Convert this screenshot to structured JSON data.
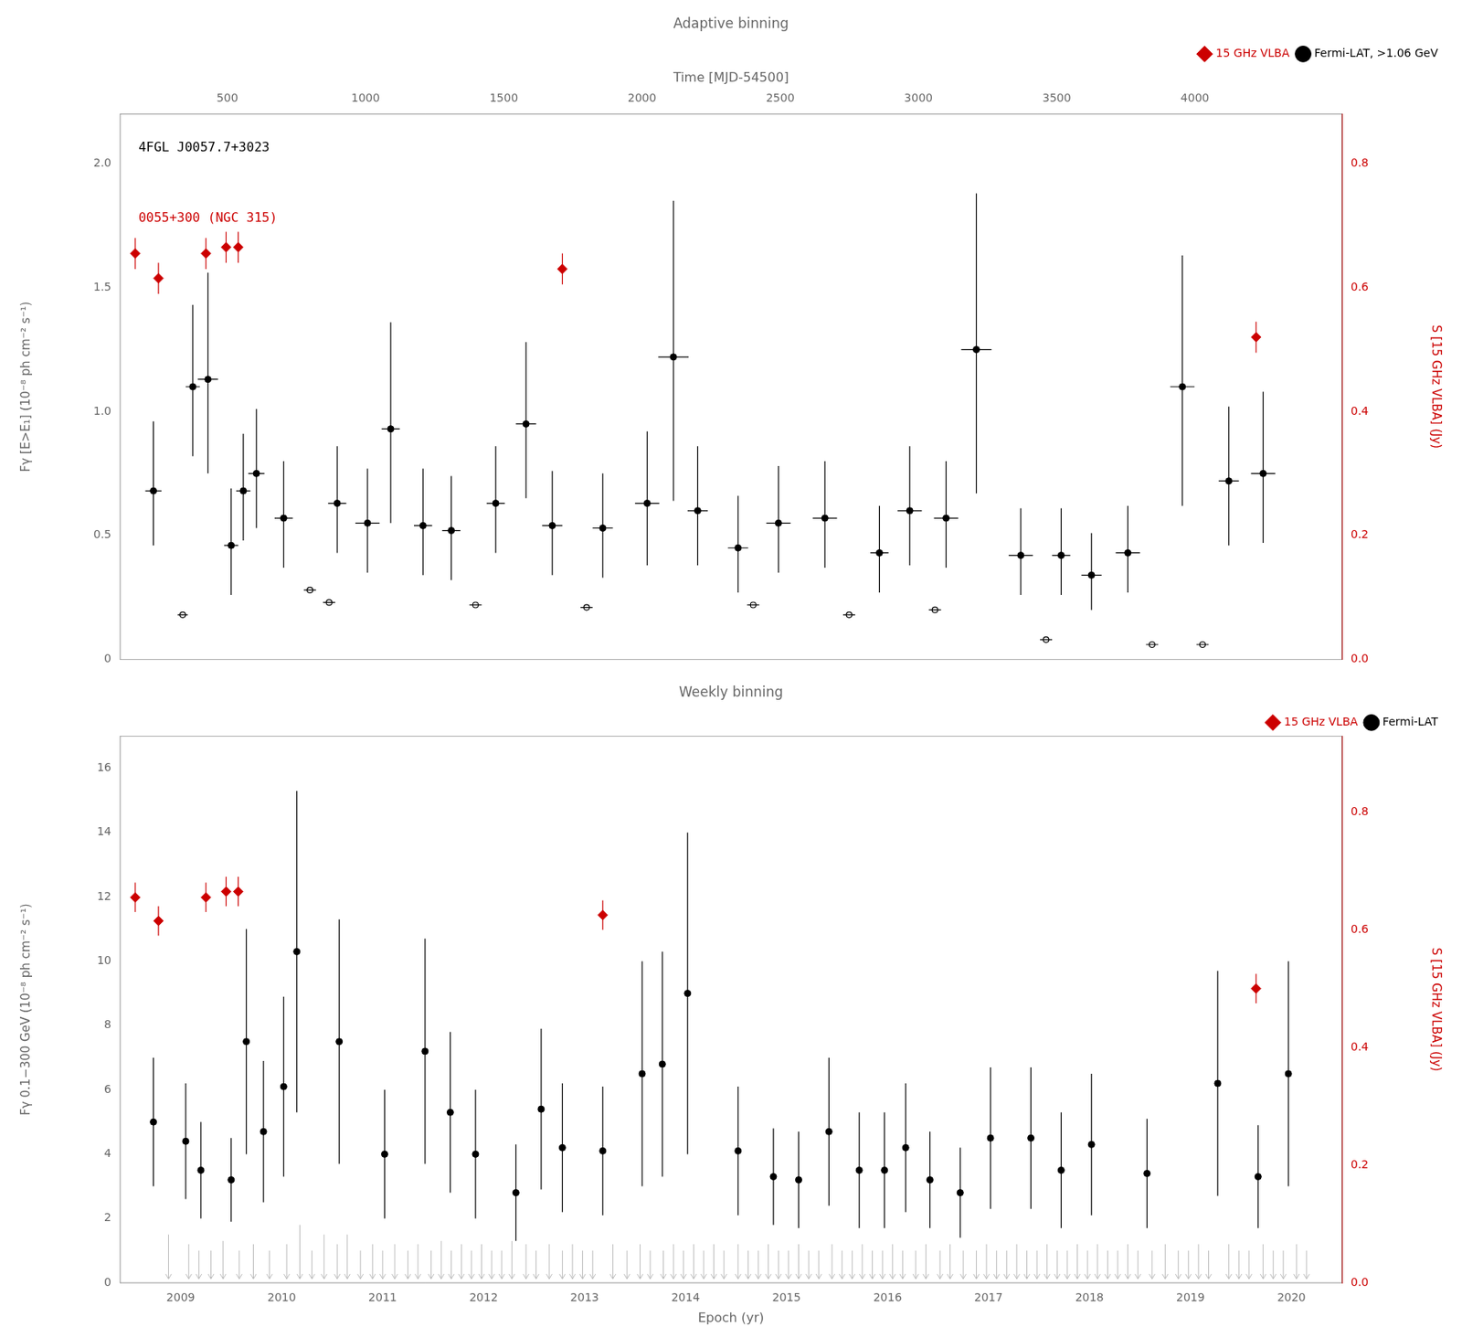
{
  "chart_data": [
    {
      "type": "scatter",
      "title": "Adaptive binning",
      "xlim": [
        2008.4,
        2020.5
      ],
      "x2label": "Time [MJD-54500]",
      "x2lim": [
        112.1,
        4531.625
      ],
      "x2ticks": [
        500,
        1000,
        1500,
        2000,
        2500,
        3000,
        3500,
        4000
      ],
      "ylabel": "Fγ [E>E₁] (10⁻⁸ ph cm⁻² s⁻¹)",
      "ylim": [
        0,
        2.2
      ],
      "yticks": [
        0,
        0.5,
        {
          "value": 1.0,
          "label": "1.0"
        },
        1.5,
        {
          "value": 2.0,
          "label": "2.0"
        }
      ],
      "y2label": "S [15 GHz VLBA] (Jy)",
      "y2lim": [
        0,
        0.88
      ],
      "y2ticks": [
        {
          "value": 0.0,
          "label": "0.0"
        },
        0.2,
        0.4,
        0.6,
        0.8
      ],
      "grid": false,
      "legend": "upper right",
      "annotations": [
        {
          "text": "4FGL J0057.7+3023",
          "color": "#000000"
        },
        {
          "text": "0055+300 (NGC 315)",
          "color": "#cc0000"
        }
      ],
      "series": [
        {
          "name": "Fermi-LAT, >1.06 GeV",
          "color": "#000000",
          "marker": "circle",
          "x": [
            2008.73,
            2009.12,
            2009.27,
            2009.5,
            2009.62,
            2009.75,
            2010.02,
            2010.55,
            2010.85,
            2011.08,
            2011.4,
            2011.68,
            2012.12,
            2012.42,
            2012.68,
            2013.18,
            2013.62,
            2013.88,
            2014.12,
            2014.52,
            2014.92,
            2015.38,
            2015.92,
            2016.22,
            2016.58,
            2016.88,
            2017.32,
            2017.72,
            2018.02,
            2018.38,
            2018.92,
            2019.38,
            2019.72
          ],
          "values": [
            0.68,
            1.1,
            1.13,
            0.46,
            0.68,
            0.75,
            0.57,
            0.63,
            0.55,
            0.93,
            0.54,
            0.52,
            0.63,
            0.95,
            0.54,
            0.53,
            0.63,
            1.22,
            0.6,
            0.45,
            0.55,
            0.57,
            0.43,
            0.6,
            0.57,
            1.25,
            0.42,
            0.42,
            0.34,
            0.43,
            1.1,
            0.72,
            0.75
          ],
          "xerr_lo": [
            0.08,
            0.07,
            0.1,
            0.07,
            0.07,
            0.08,
            0.09,
            0.09,
            0.12,
            0.09,
            0.09,
            0.09,
            0.09,
            0.1,
            0.1,
            0.1,
            0.12,
            0.15,
            0.1,
            0.1,
            0.12,
            0.12,
            0.09,
            0.12,
            0.12,
            0.15,
            0.12,
            0.09,
            0.1,
            0.12,
            0.12,
            0.1,
            0.12
          ],
          "xerr_hi": [
            0.08,
            0.07,
            0.1,
            0.07,
            0.07,
            0.08,
            0.09,
            0.09,
            0.12,
            0.09,
            0.09,
            0.09,
            0.09,
            0.1,
            0.1,
            0.1,
            0.12,
            0.15,
            0.1,
            0.1,
            0.12,
            0.12,
            0.09,
            0.12,
            0.12,
            0.15,
            0.12,
            0.09,
            0.1,
            0.12,
            0.12,
            0.1,
            0.12
          ],
          "yerr_lo": [
            0.22,
            0.28,
            0.38,
            0.2,
            0.2,
            0.22,
            0.2,
            0.2,
            0.2,
            0.38,
            0.2,
            0.2,
            0.2,
            0.3,
            0.2,
            0.2,
            0.25,
            0.58,
            0.22,
            0.18,
            0.2,
            0.2,
            0.16,
            0.22,
            0.2,
            0.58,
            0.16,
            0.16,
            0.14,
            0.16,
            0.48,
            0.26,
            0.28
          ],
          "yerr_hi": [
            0.28,
            0.33,
            0.43,
            0.23,
            0.23,
            0.26,
            0.23,
            0.23,
            0.22,
            0.43,
            0.23,
            0.22,
            0.23,
            0.33,
            0.22,
            0.22,
            0.29,
            0.63,
            0.26,
            0.21,
            0.23,
            0.23,
            0.19,
            0.26,
            0.23,
            0.63,
            0.19,
            0.19,
            0.17,
            0.19,
            0.53,
            0.3,
            0.33
          ]
        },
        {
          "color": "#000000",
          "marker": "open_circle",
          "x": [
            2009.02,
            2010.28,
            2010.47,
            2011.92,
            2013.02,
            2014.67,
            2015.62,
            2016.47,
            2017.57,
            2018.62,
            2019.12
          ],
          "values": [
            0.18,
            0.28,
            0.23,
            0.22,
            0.21,
            0.22,
            0.18,
            0.2,
            0.08,
            0.06,
            0.06
          ],
          "xerr_lo": [
            0.05,
            0.06,
            0.06,
            0.06,
            0.06,
            0.06,
            0.06,
            0.06,
            0.06,
            0.06,
            0.06
          ],
          "xerr_hi": [
            0.05,
            0.06,
            0.06,
            0.06,
            0.06,
            0.06,
            0.06,
            0.06,
            0.06,
            0.06,
            0.06
          ]
        },
        {
          "name": "15 GHz VLBA",
          "color": "#cc0000",
          "marker": "diamond",
          "axis": "y2",
          "x": [
            2008.55,
            2008.78,
            2009.25,
            2009.45,
            2009.57,
            2012.78,
            2019.65
          ],
          "values": [
            0.655,
            0.615,
            0.655,
            0.665,
            0.665,
            0.63,
            0.52
          ],
          "yerr_lo": [
            0.025,
            0.025,
            0.025,
            0.025,
            0.025,
            0.025,
            0.025
          ],
          "yerr_hi": [
            0.025,
            0.025,
            0.025,
            0.025,
            0.025,
            0.025,
            0.025
          ],
          "xerr_lo": [
            0.03,
            0.03,
            0.03,
            0.03,
            0.03,
            0.03,
            0.03
          ],
          "xerr_hi": [
            0.03,
            0.03,
            0.03,
            0.03,
            0.03,
            0.03,
            0.03
          ]
        }
      ]
    },
    {
      "type": "scatter",
      "title": "Weekly binning",
      "xlabel": "Epoch (yr)",
      "xlim": [
        2008.4,
        2020.5
      ],
      "xticks": [
        2009,
        2010,
        2011,
        2012,
        2013,
        2014,
        2015,
        2016,
        2017,
        2018,
        2019,
        2020
      ],
      "ylabel": "Fγ 0.1−300 GeV (10⁻⁸ ph cm⁻² s⁻¹)",
      "ylim": [
        0,
        17
      ],
      "yticks": [
        0,
        2,
        4,
        6,
        8,
        10,
        12,
        14,
        16
      ],
      "y2label": "S [15 GHz VLBA] (Jy)",
      "y2lim": [
        0,
        0.929
      ],
      "y2ticks": [
        {
          "value": 0.0,
          "label": "0.0"
        },
        0.2,
        0.4,
        0.6,
        0.8
      ],
      "grid": false,
      "legend": "upper right",
      "series": [
        {
          "type": "upper_limit",
          "color": "#bbbbbb",
          "marker": "arrow",
          "arrow_end": 0.12,
          "x": [
            2008.88,
            2009.08,
            2009.18,
            2009.3,
            2009.42,
            2009.58,
            2009.72,
            2009.88,
            2010.05,
            2010.18,
            2010.3,
            2010.42,
            2010.55,
            2010.65,
            2010.78,
            2010.9,
            2011.0,
            2011.12,
            2011.25,
            2011.35,
            2011.48,
            2011.58,
            2011.68,
            2011.78,
            2011.88,
            2011.98,
            2012.08,
            2012.18,
            2012.28,
            2012.42,
            2012.52,
            2012.65,
            2012.78,
            2012.88,
            2012.98,
            2013.08,
            2013.28,
            2013.42,
            2013.55,
            2013.65,
            2013.78,
            2013.88,
            2013.98,
            2014.08,
            2014.18,
            2014.28,
            2014.38,
            2014.52,
            2014.62,
            2014.72,
            2014.82,
            2014.92,
            2015.02,
            2015.12,
            2015.22,
            2015.32,
            2015.45,
            2015.55,
            2015.65,
            2015.75,
            2015.85,
            2015.95,
            2016.05,
            2016.15,
            2016.28,
            2016.38,
            2016.52,
            2016.62,
            2016.75,
            2016.88,
            2016.98,
            2017.08,
            2017.18,
            2017.28,
            2017.38,
            2017.48,
            2017.58,
            2017.68,
            2017.78,
            2017.88,
            2017.98,
            2018.08,
            2018.18,
            2018.28,
            2018.38,
            2018.48,
            2018.62,
            2018.75,
            2018.88,
            2018.98,
            2019.08,
            2019.18,
            2019.38,
            2019.48,
            2019.58,
            2019.72,
            2019.82,
            2019.92,
            2020.05,
            2020.15
          ],
          "values": [
            1.5,
            1.2,
            1.0,
            1.0,
            1.3,
            1.0,
            1.2,
            1.0,
            1.2,
            1.8,
            1.0,
            1.5,
            1.2,
            1.5,
            1.0,
            1.2,
            1.0,
            1.2,
            1.0,
            1.2,
            1.0,
            1.3,
            1.0,
            1.2,
            1.0,
            1.2,
            1.0,
            1.0,
            1.3,
            1.2,
            1.0,
            1.2,
            1.0,
            1.2,
            1.0,
            1.0,
            1.2,
            1.0,
            1.2,
            1.0,
            1.0,
            1.2,
            1.0,
            1.2,
            1.0,
            1.2,
            1.0,
            1.2,
            1.0,
            1.0,
            1.2,
            1.0,
            1.0,
            1.2,
            1.0,
            1.0,
            1.2,
            1.0,
            1.0,
            1.2,
            1.0,
            1.0,
            1.2,
            1.0,
            1.0,
            1.2,
            1.0,
            1.2,
            1.0,
            1.0,
            1.2,
            1.0,
            1.0,
            1.2,
            1.0,
            1.0,
            1.2,
            1.0,
            1.0,
            1.2,
            1.0,
            1.2,
            1.0,
            1.0,
            1.2,
            1.0,
            1.0,
            1.2,
            1.0,
            1.0,
            1.2,
            1.0,
            1.2,
            1.0,
            1.0,
            1.2,
            1.0,
            1.0,
            1.2,
            1.0
          ]
        },
        {
          "name": "Fermi-LAT",
          "color": "#000000",
          "marker": "circle",
          "x": [
            2008.73,
            2009.05,
            2009.2,
            2009.5,
            2009.65,
            2009.82,
            2010.02,
            2010.15,
            2010.57,
            2011.02,
            2011.42,
            2011.67,
            2011.92,
            2012.32,
            2012.57,
            2012.78,
            2013.18,
            2013.57,
            2013.77,
            2014.02,
            2014.52,
            2014.87,
            2015.12,
            2015.42,
            2015.72,
            2015.97,
            2016.18,
            2016.42,
            2016.72,
            2017.02,
            2017.42,
            2017.72,
            2018.02,
            2018.57,
            2019.27,
            2019.67,
            2019.97
          ],
          "values": [
            5.0,
            4.4,
            3.5,
            3.2,
            7.5,
            4.7,
            6.1,
            10.3,
            7.5,
            4.0,
            7.2,
            5.3,
            4.0,
            2.8,
            5.4,
            4.2,
            4.1,
            6.5,
            6.8,
            9.0,
            4.1,
            3.3,
            3.2,
            4.7,
            3.5,
            3.5,
            4.2,
            3.2,
            2.8,
            4.5,
            4.5,
            3.5,
            4.3,
            3.4,
            6.2,
            3.3,
            6.5
          ],
          "yerr_lo": [
            2.0,
            1.8,
            1.5,
            1.3,
            3.5,
            2.2,
            2.8,
            5.0,
            3.8,
            2.0,
            3.5,
            2.5,
            2.0,
            1.5,
            2.5,
            2.0,
            2.0,
            3.5,
            3.5,
            5.0,
            2.0,
            1.5,
            1.5,
            2.3,
            1.8,
            1.8,
            2.0,
            1.5,
            1.4,
            2.2,
            2.2,
            1.8,
            2.2,
            1.7,
            3.5,
            1.6,
            3.5
          ],
          "yerr_hi": [
            2.0,
            1.8,
            1.5,
            1.3,
            3.5,
            2.2,
            2.8,
            5.0,
            3.8,
            2.0,
            3.5,
            2.5,
            2.0,
            1.5,
            2.5,
            2.0,
            2.0,
            3.5,
            3.5,
            5.0,
            2.0,
            1.5,
            1.5,
            2.3,
            1.8,
            1.8,
            2.0,
            1.5,
            1.4,
            2.2,
            2.2,
            1.8,
            2.2,
            1.7,
            3.5,
            1.6,
            3.5
          ]
        },
        {
          "name": "15 GHz VLBA",
          "color": "#cc0000",
          "marker": "diamond",
          "axis": "y2",
          "x": [
            2008.55,
            2008.78,
            2009.25,
            2009.45,
            2009.57,
            2013.18,
            2019.65
          ],
          "values": [
            0.655,
            0.615,
            0.655,
            0.665,
            0.665,
            0.625,
            0.5
          ],
          "yerr_lo": [
            0.025,
            0.025,
            0.025,
            0.025,
            0.025,
            0.025,
            0.025
          ],
          "yerr_hi": [
            0.025,
            0.025,
            0.025,
            0.025,
            0.025,
            0.025,
            0.025
          ]
        }
      ]
    }
  ]
}
